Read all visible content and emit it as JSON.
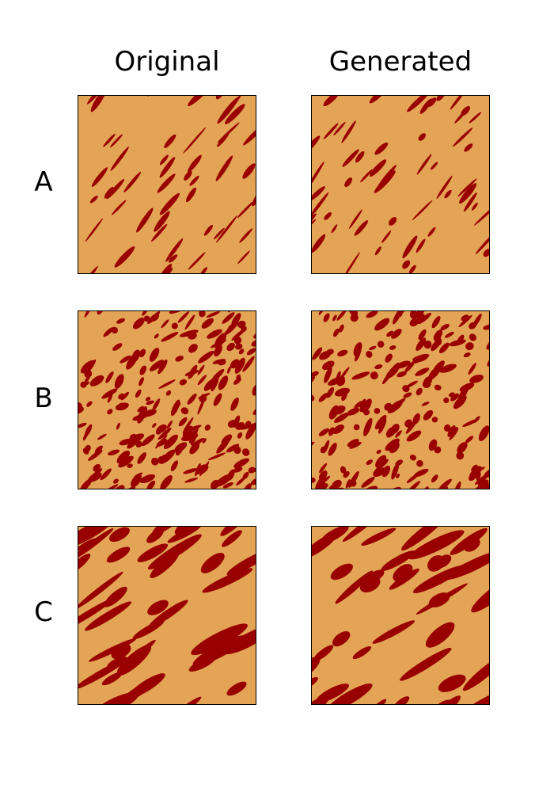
{
  "figure": {
    "columns": [
      "Original",
      "Generated"
    ],
    "rows": [
      "A",
      "B",
      "C"
    ],
    "colors": {
      "background": "#E3A455",
      "facies": "#990000"
    }
  },
  "panels": [
    {
      "row": "A",
      "column": "Original",
      "pattern": "sparse-diagonal-streaks",
      "seed": 11
    },
    {
      "row": "A",
      "column": "Generated",
      "pattern": "sparse-diagonal-streaks",
      "seed": 23
    },
    {
      "row": "B",
      "column": "Original",
      "pattern": "dense-mottled",
      "seed": 37
    },
    {
      "row": "B",
      "column": "Generated",
      "pattern": "dense-mottled",
      "seed": 41
    },
    {
      "row": "C",
      "column": "Original",
      "pattern": "thick-diagonal-bands",
      "seed": 53
    },
    {
      "row": "C",
      "column": "Generated",
      "pattern": "thick-diagonal-bands",
      "seed": 67
    }
  ]
}
